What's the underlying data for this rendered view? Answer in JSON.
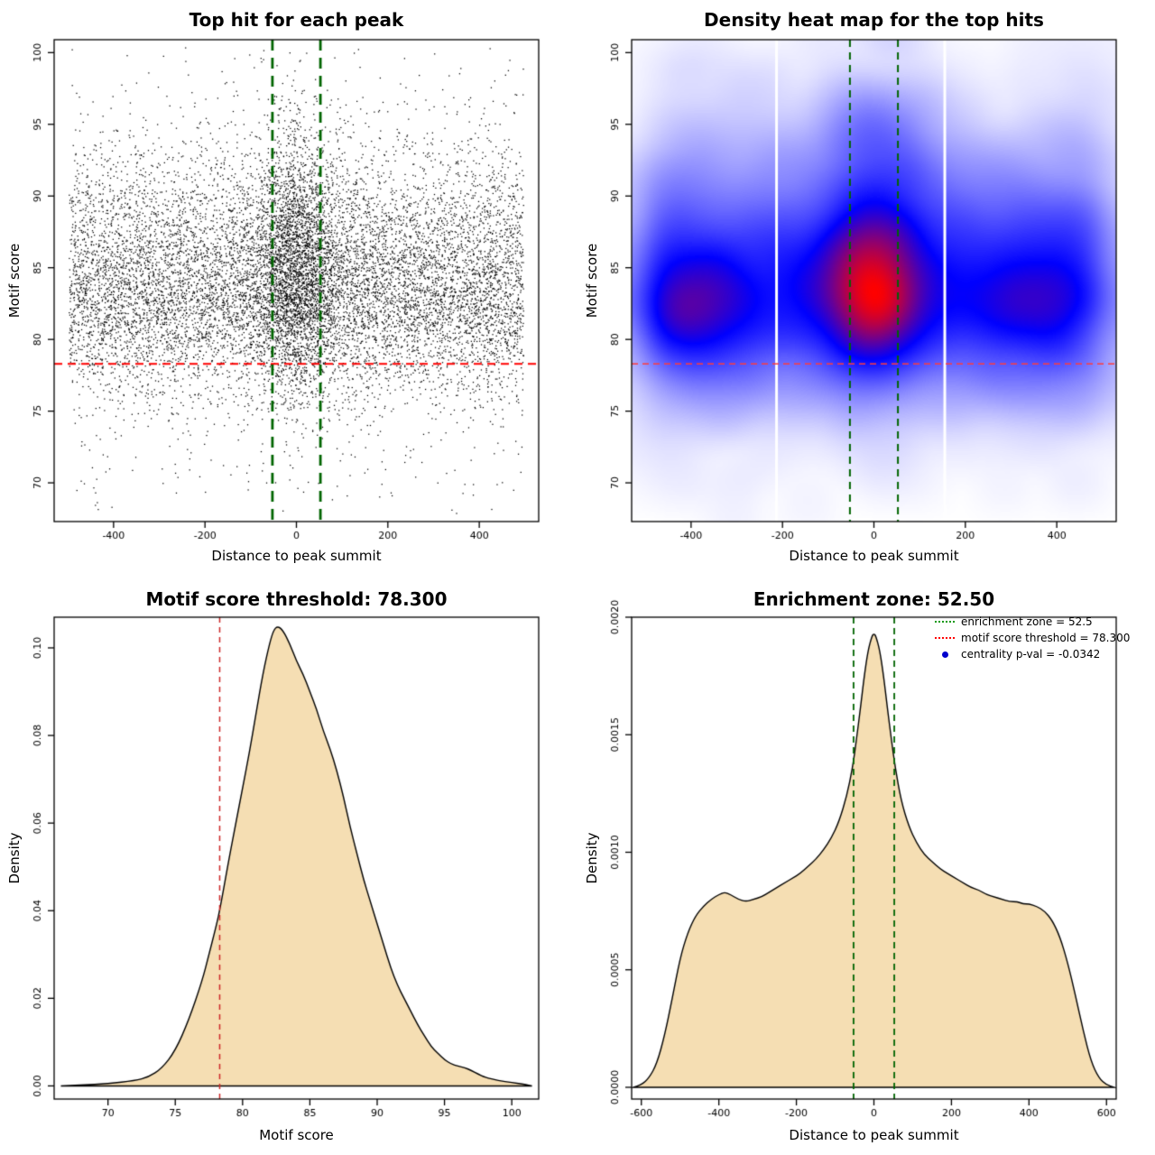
{
  "figure": {
    "background_color": "#FFFFFF"
  },
  "chart_data": [
    {
      "id": "top-hit-scatter",
      "type": "scatter",
      "title": "Top hit for each peak",
      "xlabel": "Distance to peak summit",
      "ylabel": "Motif score",
      "xlim": [
        -530,
        530
      ],
      "ylim": [
        67.3,
        100.9
      ],
      "xticks": [
        -400,
        -200,
        0,
        200,
        400
      ],
      "xticklabels": [
        "-400",
        "-200",
        "0",
        "200",
        "400"
      ],
      "yticks": [
        70,
        75,
        80,
        85,
        90,
        95,
        100
      ],
      "yticklabels": [
        "70",
        "75",
        "80",
        "85",
        "90",
        "95",
        "100"
      ],
      "grid": false,
      "point_color": "#000000",
      "motif_score_threshold": 78.3,
      "enrichment_zone": [
        -52.5,
        52.5
      ],
      "threshold_line": {
        "y": 78.3,
        "color": "#FF0000",
        "style": "dashed"
      },
      "zone_lines": {
        "x": [
          -52.5,
          52.5
        ],
        "color": "#006400",
        "style": "dashed"
      },
      "model": {
        "n_background_points": 10500,
        "n_center_cluster_points": 2600,
        "x_range": [
          -497,
          497
        ],
        "center_sd": 42,
        "low_outlier_rate": 0.012
      }
    },
    {
      "id": "top-hits-density-heatmap",
      "type": "heatmap",
      "title": "Density heat map for the top hits",
      "xlabel": "Distance to peak summit",
      "ylabel": "Motif score",
      "xlim": [
        -530,
        530
      ],
      "ylim": [
        67.3,
        100.9
      ],
      "xticks": [
        -400,
        -200,
        0,
        200,
        400
      ],
      "xticklabels": [
        "-400",
        "-200",
        "0",
        "200",
        "400"
      ],
      "yticks": [
        70,
        75,
        80,
        85,
        90,
        95,
        100
      ],
      "yticklabels": [
        "70",
        "75",
        "80",
        "85",
        "90",
        "95",
        "100"
      ],
      "grid": false,
      "colormap": [
        "#FFFFFF",
        "#0000FF",
        "#FF0000"
      ],
      "hotspot_center": {
        "x": 0,
        "y": 83.7
      },
      "band_y_range": [
        78,
        90
      ],
      "white_stripes_x": [
        -213,
        155
      ],
      "threshold_line": {
        "y": 78.3,
        "color": "#FF3B3B",
        "style": "dashed"
      },
      "zone_lines": {
        "x": [
          -52.5,
          52.5
        ],
        "color": "#006400",
        "style": "dashed"
      }
    },
    {
      "id": "motif-score-density",
      "type": "density",
      "title": "Motif score threshold: 78.300",
      "xlabel": "Motif score",
      "ylabel": "Density",
      "xlim": [
        66,
        102
      ],
      "ylim": [
        -0.003,
        0.107
      ],
      "xticks": [
        70,
        75,
        80,
        85,
        90,
        95,
        100
      ],
      "xticklabels": [
        "70",
        "75",
        "80",
        "85",
        "90",
        "95",
        "100"
      ],
      "yticks": [
        0,
        0.02,
        0.04,
        0.06,
        0.08,
        0.1
      ],
      "yticklabels": [
        "0.00",
        "0.02",
        "0.04",
        "0.06",
        "0.08",
        "0.10"
      ],
      "grid": false,
      "fill_color": "#F5DEB3",
      "line_color": "#000000",
      "threshold_line": {
        "x": 78.3,
        "color": "#CC2929",
        "style": "dashed"
      },
      "curve": {
        "x": [
          66.5,
          68,
          70,
          72,
          73,
          74,
          75,
          76,
          77,
          77.5,
          78,
          78.3,
          79,
          79.5,
          80,
          80.5,
          81,
          81.5,
          82,
          82.3,
          82.6,
          83,
          83.5,
          84,
          84.5,
          85,
          85.5,
          86,
          86.5,
          87,
          87.5,
          88,
          88.5,
          89,
          89.5,
          90,
          90.5,
          91,
          91.5,
          92,
          92.5,
          93,
          93.5,
          94,
          94.5,
          95,
          95.5,
          96,
          96.5,
          97,
          97.5,
          98,
          99,
          100,
          101,
          101.5
        ],
        "y": [
          0,
          0.0002,
          0.0005,
          0.0012,
          0.002,
          0.004,
          0.008,
          0.015,
          0.024,
          0.03,
          0.036,
          0.04,
          0.052,
          0.06,
          0.068,
          0.076,
          0.085,
          0.094,
          0.101,
          0.104,
          0.105,
          0.104,
          0.101,
          0.097,
          0.094,
          0.09,
          0.086,
          0.081,
          0.077,
          0.072,
          0.066,
          0.059,
          0.053,
          0.047,
          0.042,
          0.037,
          0.032,
          0.027,
          0.023,
          0.02,
          0.017,
          0.014,
          0.0115,
          0.009,
          0.0075,
          0.006,
          0.005,
          0.0045,
          0.0042,
          0.0035,
          0.0027,
          0.002,
          0.0012,
          0.0008,
          0.0003,
          0
        ]
      }
    },
    {
      "id": "distance-density",
      "type": "density",
      "title": "Enrichment zone: 52.50",
      "xlabel": "Distance to peak summit",
      "ylabel": "Density",
      "xlim": [
        -625,
        625
      ],
      "ylim": [
        -5e-05,
        0.002
      ],
      "xticks": [
        -600,
        -400,
        -200,
        0,
        200,
        400,
        600
      ],
      "xticklabels": [
        "-600",
        "-400",
        "-200",
        "0",
        "200",
        "400",
        "600"
      ],
      "yticks": [
        0,
        0.0005,
        0.001,
        0.0015,
        0.002
      ],
      "yticklabels": [
        "0.0000",
        "0.0005",
        "0.0010",
        "0.0015",
        "0.0020"
      ],
      "grid": false,
      "fill_color": "#F5DEB3",
      "line_color": "#000000",
      "zone_lines": {
        "x": [
          -52.5,
          52.5
        ],
        "color": "#006400",
        "style": "dashed"
      },
      "curve": {
        "x": [
          -620,
          -600,
          -580,
          -560,
          -540,
          -520,
          -500,
          -480,
          -460,
          -440,
          -420,
          -400,
          -385,
          -370,
          -350,
          -330,
          -310,
          -290,
          -270,
          -250,
          -230,
          -210,
          -190,
          -170,
          -150,
          -130,
          -110,
          -90,
          -70,
          -55,
          -45,
          -35,
          -25,
          -15,
          -5,
          0,
          5,
          15,
          25,
          35,
          45,
          55,
          70,
          90,
          110,
          130,
          150,
          170,
          190,
          210,
          230,
          250,
          270,
          290,
          310,
          330,
          350,
          370,
          385,
          400,
          420,
          440,
          460,
          480,
          500,
          520,
          540,
          560,
          580,
          600,
          620
        ],
        "y": [
          0,
          1e-05,
          4e-05,
          0.0001,
          0.00022,
          0.00038,
          0.00055,
          0.00066,
          0.00073,
          0.00077,
          0.0008,
          0.00082,
          0.00083,
          0.00082,
          0.0008,
          0.00079,
          0.0008,
          0.00081,
          0.00083,
          0.00085,
          0.00087,
          0.00089,
          0.00091,
          0.00094,
          0.00097,
          0.00101,
          0.00106,
          0.00113,
          0.00124,
          0.00136,
          0.00148,
          0.00161,
          0.00175,
          0.00186,
          0.00192,
          0.00193,
          0.00192,
          0.00186,
          0.00175,
          0.00161,
          0.00148,
          0.00136,
          0.00122,
          0.00111,
          0.00104,
          0.00099,
          0.00096,
          0.00093,
          0.00091,
          0.00089,
          0.00087,
          0.00085,
          0.00084,
          0.00082,
          0.00081,
          0.0008,
          0.00079,
          0.00079,
          0.00078,
          0.00078,
          0.00077,
          0.00075,
          0.00071,
          0.00064,
          0.00053,
          0.00039,
          0.00024,
          0.00011,
          4e-05,
          1e-05,
          0
        ]
      },
      "legend": {
        "position": "topright",
        "items": [
          {
            "label": "enrichment zone = 52.5",
            "glyph": "dotted-line",
            "color": "#119911"
          },
          {
            "label": "motif score threshold = 78.300",
            "glyph": "dotted-line",
            "color": "#FF0000"
          },
          {
            "label": "centrality p-val = -0.0342",
            "glyph": "point",
            "color": "#0000CD"
          }
        ]
      }
    }
  ]
}
